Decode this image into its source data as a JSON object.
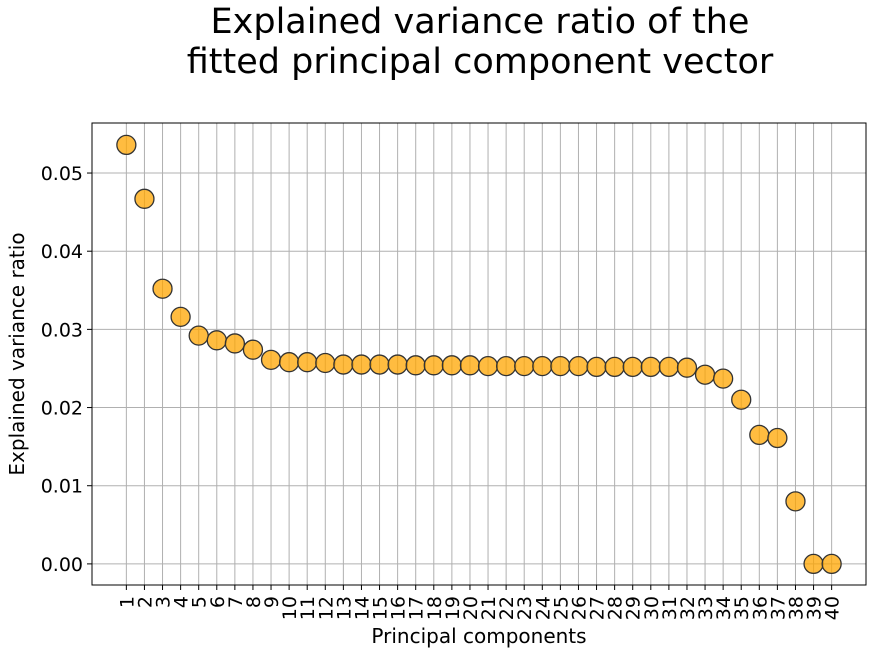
{
  "chart_data": {
    "type": "scatter",
    "title_lines": [
      "Explained variance ratio of the",
      "fitted principal component vector"
    ],
    "xlabel": "Principal components",
    "ylabel": "Explained variance ratio",
    "x": [
      1,
      2,
      3,
      4,
      5,
      6,
      7,
      8,
      9,
      10,
      11,
      12,
      13,
      14,
      15,
      16,
      17,
      18,
      19,
      20,
      21,
      22,
      23,
      24,
      25,
      26,
      27,
      28,
      29,
      30,
      31,
      32,
      33,
      34,
      35,
      36,
      37,
      38,
      39,
      40
    ],
    "y": [
      0.0536,
      0.0467,
      0.0352,
      0.0316,
      0.0292,
      0.0286,
      0.0282,
      0.0274,
      0.0261,
      0.0258,
      0.0258,
      0.0257,
      0.0255,
      0.0255,
      0.0255,
      0.0255,
      0.0254,
      0.0254,
      0.0254,
      0.0254,
      0.0253,
      0.0253,
      0.0253,
      0.0253,
      0.0253,
      0.0253,
      0.0252,
      0.0252,
      0.0252,
      0.0252,
      0.0252,
      0.0251,
      0.0242,
      0.0237,
      0.021,
      0.0165,
      0.0161,
      0.008,
      0.0,
      0.0
    ],
    "xticks": [
      "1",
      "2",
      "3",
      "4",
      "5",
      "6",
      "7",
      "8",
      "9",
      "10",
      "11",
      "12",
      "13",
      "14",
      "15",
      "16",
      "17",
      "18",
      "19",
      "20",
      "21",
      "22",
      "23",
      "24",
      "25",
      "26",
      "27",
      "28",
      "29",
      "30",
      "31",
      "32",
      "33",
      "34",
      "35",
      "36",
      "37",
      "38",
      "39",
      "40"
    ],
    "yticks": [
      "0.00",
      "0.01",
      "0.02",
      "0.03",
      "0.04",
      "0.05"
    ],
    "ylim": [
      -0.0027,
      0.0564
    ],
    "xlim": [
      -0.9,
      41.9
    ],
    "grid": true,
    "marker_color": "#FFA500",
    "marker_edge_color": "#333333",
    "grid_color": "#b0b0b0"
  }
}
